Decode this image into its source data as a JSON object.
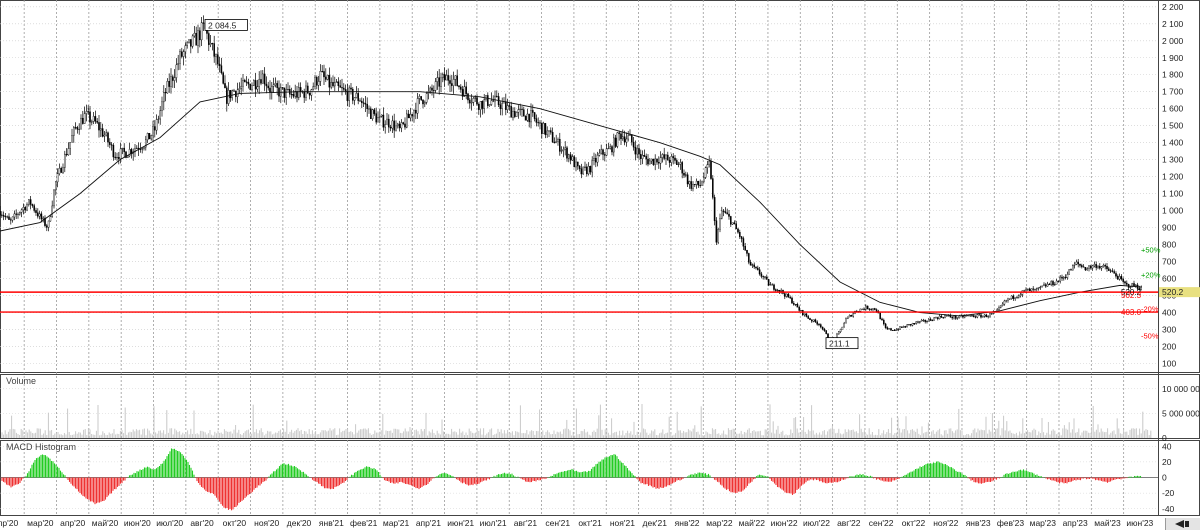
{
  "panels": {
    "volume_label": "Volume",
    "macd_label": "MACD Histogram"
  },
  "chart_data": [
    {
      "type": "candlestick",
      "panel": "price",
      "ylim": [
        50,
        2240
      ],
      "y_ticks": [
        100,
        200,
        300,
        400,
        500,
        600,
        700,
        800,
        900,
        1000,
        1100,
        1200,
        1300,
        1400,
        1500,
        1600,
        1700,
        1800,
        1900,
        2000,
        2100,
        2200
      ],
      "y_tick_labels": [
        "100",
        "200",
        "300",
        "400",
        "500",
        "600",
        "700",
        "800",
        "900",
        "1 000",
        "1 100",
        "1 200",
        "1 300",
        "1 400",
        "1 500",
        "1 600",
        "1 700",
        "1 800",
        "1 900",
        "2 000",
        "2 100",
        "2 200"
      ],
      "x_labels": [
        "пр'20",
        "мар'20",
        "апр'20",
        "май'20",
        "июн'20",
        "июл'20",
        "авг'20",
        "окт'20",
        "ноя'20",
        "дек'20",
        "янв'21",
        "фев'21",
        "мар'21",
        "апр'21",
        "июн'21",
        "июл'21",
        "авг'21",
        "сен'21",
        "окт'21",
        "ноя'21",
        "дек'21",
        "янв'22",
        "мар'22",
        "май'22",
        "июн'22",
        "июл'22",
        "авг'22",
        "сен'22",
        "окт'22",
        "ноя'22",
        "янв'23",
        "фев'23",
        "мар'23",
        "апр'23",
        "май'23",
        "июн'23"
      ],
      "price_path": [
        [
          0,
          1000
        ],
        [
          10,
          930
        ],
        [
          20,
          1000
        ],
        [
          30,
          1050
        ],
        [
          40,
          960
        ],
        [
          48,
          900
        ],
        [
          55,
          1150
        ],
        [
          65,
          1320
        ],
        [
          75,
          1480
        ],
        [
          85,
          1560
        ],
        [
          95,
          1520
        ],
        [
          105,
          1440
        ],
        [
          115,
          1330
        ],
        [
          125,
          1340
        ],
        [
          135,
          1370
        ],
        [
          145,
          1400
        ],
        [
          155,
          1480
        ],
        [
          165,
          1690
        ],
        [
          172,
          1780
        ],
        [
          180,
          1900
        ],
        [
          188,
          1960
        ],
        [
          196,
          2010
        ],
        [
          204,
          2080
        ],
        [
          212,
          1950
        ],
        [
          218,
          1860
        ],
        [
          226,
          1660
        ],
        [
          232,
          1700
        ],
        [
          240,
          1720
        ],
        [
          248,
          1740
        ],
        [
          256,
          1760
        ],
        [
          262,
          1800
        ],
        [
          270,
          1720
        ],
        [
          280,
          1700
        ],
        [
          290,
          1680
        ],
        [
          300,
          1690
        ],
        [
          310,
          1710
        ],
        [
          320,
          1800
        ],
        [
          330,
          1740
        ],
        [
          340,
          1710
        ],
        [
          350,
          1680
        ],
        [
          360,
          1660
        ],
        [
          370,
          1580
        ],
        [
          380,
          1530
        ],
        [
          390,
          1520
        ],
        [
          400,
          1470
        ],
        [
          410,
          1560
        ],
        [
          420,
          1650
        ],
        [
          430,
          1690
        ],
        [
          440,
          1760
        ],
        [
          450,
          1790
        ],
        [
          460,
          1730
        ],
        [
          470,
          1670
        ],
        [
          480,
          1630
        ],
        [
          490,
          1650
        ],
        [
          500,
          1630
        ],
        [
          510,
          1590
        ],
        [
          520,
          1570
        ],
        [
          530,
          1560
        ],
        [
          540,
          1500
        ],
        [
          550,
          1440
        ],
        [
          560,
          1380
        ],
        [
          570,
          1320
        ],
        [
          580,
          1220
        ],
        [
          590,
          1250
        ],
        [
          600,
          1330
        ],
        [
          610,
          1360
        ],
        [
          620,
          1450
        ],
        [
          630,
          1420
        ],
        [
          640,
          1320
        ],
        [
          650,
          1290
        ],
        [
          660,
          1310
        ],
        [
          670,
          1300
        ],
        [
          680,
          1270
        ],
        [
          690,
          1150
        ],
        [
          700,
          1150
        ],
        [
          710,
          1280
        ],
        [
          716,
          820
        ],
        [
          722,
          1000
        ],
        [
          730,
          950
        ],
        [
          740,
          850
        ],
        [
          750,
          680
        ],
        [
          760,
          630
        ],
        [
          770,
          560
        ],
        [
          780,
          530
        ],
        [
          790,
          480
        ],
        [
          800,
          410
        ],
        [
          810,
          360
        ],
        [
          820,
          330
        ],
        [
          830,
          230
        ],
        [
          838,
          270
        ],
        [
          846,
          360
        ],
        [
          856,
          410
        ],
        [
          866,
          430
        ],
        [
          876,
          420
        ],
        [
          886,
          300
        ],
        [
          896,
          300
        ],
        [
          906,
          320
        ],
        [
          916,
          340
        ],
        [
          926,
          350
        ],
        [
          936,
          370
        ],
        [
          946,
          380
        ],
        [
          956,
          370
        ],
        [
          966,
          380
        ],
        [
          976,
          380
        ],
        [
          986,
          380
        ],
        [
          996,
          400
        ],
        [
          1006,
          470
        ],
        [
          1016,
          500
        ],
        [
          1026,
          530
        ],
        [
          1036,
          530
        ],
        [
          1046,
          560
        ],
        [
          1056,
          580
        ],
        [
          1066,
          620
        ],
        [
          1076,
          690
        ],
        [
          1086,
          660
        ],
        [
          1096,
          680
        ],
        [
          1106,
          660
        ],
        [
          1116,
          620
        ],
        [
          1126,
          560
        ],
        [
          1134,
          560
        ],
        [
          1142,
          540
        ]
      ],
      "ma_path": [
        [
          0,
          880
        ],
        [
          40,
          930
        ],
        [
          80,
          1100
        ],
        [
          120,
          1300
        ],
        [
          160,
          1430
        ],
        [
          200,
          1640
        ],
        [
          240,
          1690
        ],
        [
          300,
          1700
        ],
        [
          360,
          1700
        ],
        [
          420,
          1700
        ],
        [
          480,
          1670
        ],
        [
          540,
          1600
        ],
        [
          600,
          1500
        ],
        [
          660,
          1400
        ],
        [
          700,
          1320
        ],
        [
          720,
          1270
        ],
        [
          760,
          1050
        ],
        [
          800,
          800
        ],
        [
          840,
          580
        ],
        [
          880,
          460
        ],
        [
          920,
          400
        ],
        [
          960,
          380
        ],
        [
          1000,
          410
        ],
        [
          1040,
          470
        ],
        [
          1080,
          520
        ],
        [
          1120,
          560
        ],
        [
          1142,
          550
        ]
      ],
      "highlights": [
        {
          "label": "2 084.5",
          "x": 217,
          "y": 2084.5
        },
        {
          "label": "211.1",
          "x": 838,
          "y": 211.1
        }
      ],
      "levels": [
        {
          "value": 520.2,
          "label": "520.2",
          "color": "#ff0000",
          "label_bg": "#e8e080",
          "label_color": "#000000"
        },
        {
          "value": 502.3,
          "label": "502.3",
          "color": "#ff0000",
          "label_bg": "",
          "label_color": "#ff0000"
        },
        {
          "value": 403.0,
          "label": "403.0",
          "color": "#ff0000",
          "label_bg": "",
          "label_color": "#ff0000"
        }
      ],
      "percent_marks": [
        {
          "value": 770,
          "label": "+50%",
          "color": "#00a000"
        },
        {
          "value": 625,
          "label": "+20%",
          "color": "#00a000"
        },
        {
          "value": 423,
          "label": "-20%",
          "color": "#ff0000"
        },
        {
          "value": 264,
          "label": "-50%",
          "color": "#ff0000"
        }
      ]
    },
    {
      "type": "bar",
      "panel": "volume",
      "series_name": "Volume",
      "ylim": [
        0,
        13000000
      ],
      "y_ticks": [
        0,
        5000000,
        10000000
      ],
      "y_tick_labels": [
        "0",
        "5 000 000",
        "10 000 000"
      ],
      "color": "#c8c8c8"
    },
    {
      "type": "bar",
      "panel": "macd",
      "series_name": "MACD Histogram",
      "ylim": [
        -48,
        48
      ],
      "y_ticks": [
        -40,
        -20,
        0,
        20,
        40
      ],
      "y_tick_labels": [
        "-40",
        "-20",
        "0",
        "20",
        "40"
      ],
      "positive_color": "#22cc22",
      "negative_color": "#ee3333",
      "values": [
        -5,
        -12,
        -8,
        5,
        25,
        30,
        20,
        8,
        -6,
        -18,
        -28,
        -34,
        -30,
        -18,
        -8,
        3,
        8,
        14,
        10,
        20,
        38,
        32,
        18,
        -6,
        -18,
        -22,
        -38,
        -42,
        -32,
        -22,
        -12,
        -4,
        8,
        18,
        16,
        10,
        2,
        -6,
        -14,
        -14,
        -8,
        2,
        10,
        14,
        10,
        -4,
        -8,
        -6,
        -10,
        -14,
        -8,
        2,
        6,
        2,
        -6,
        -10,
        -8,
        -3,
        2,
        6,
        4,
        -2,
        -6,
        -4,
        -1,
        4,
        8,
        10,
        6,
        8,
        18,
        26,
        30,
        18,
        6,
        -6,
        -10,
        -14,
        -12,
        -6,
        -2,
        4,
        6,
        4,
        -4,
        -14,
        -20,
        -18,
        -6,
        4,
        2,
        -10,
        -18,
        -22,
        -10,
        -2,
        -4,
        -8,
        -6,
        -2,
        2,
        4,
        2,
        -3,
        -6,
        -4,
        2,
        8,
        14,
        18,
        20,
        16,
        10,
        4,
        -4,
        -8,
        -6,
        -2,
        4,
        8,
        10,
        6,
        2,
        -2,
        -6,
        -8,
        -4,
        -2,
        -1,
        -4,
        -6,
        -2,
        -1,
        1
      ]
    }
  ]
}
